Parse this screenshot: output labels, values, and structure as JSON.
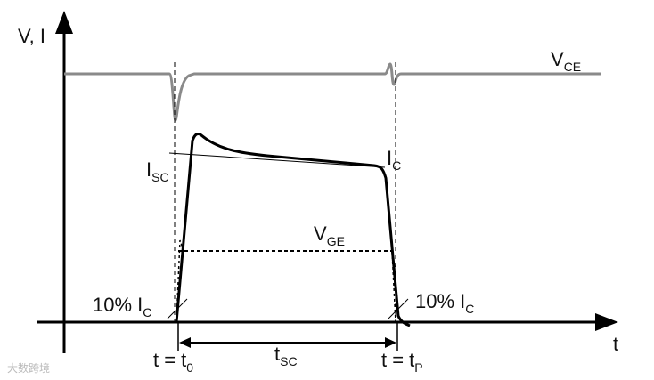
{
  "axes": {
    "y_label": "V, I",
    "x_label": "t"
  },
  "labels": {
    "vce": {
      "main": "V",
      "sub": "CE"
    },
    "isc": {
      "main": "I",
      "sub": "SC"
    },
    "ic": {
      "main": "I",
      "sub": "C"
    },
    "vge": {
      "main": "V",
      "sub": "GE"
    },
    "ic10_left": {
      "main": "10% I",
      "sub": "C"
    },
    "ic10_right": {
      "main": "10% I",
      "sub": "C"
    },
    "t0": {
      "main": "t = t",
      "sub": "0"
    },
    "tsc": {
      "main": "t",
      "sub": "SC"
    },
    "tp": {
      "main": "t = t",
      "sub": "P"
    }
  },
  "watermark": "大数跨境"
}
